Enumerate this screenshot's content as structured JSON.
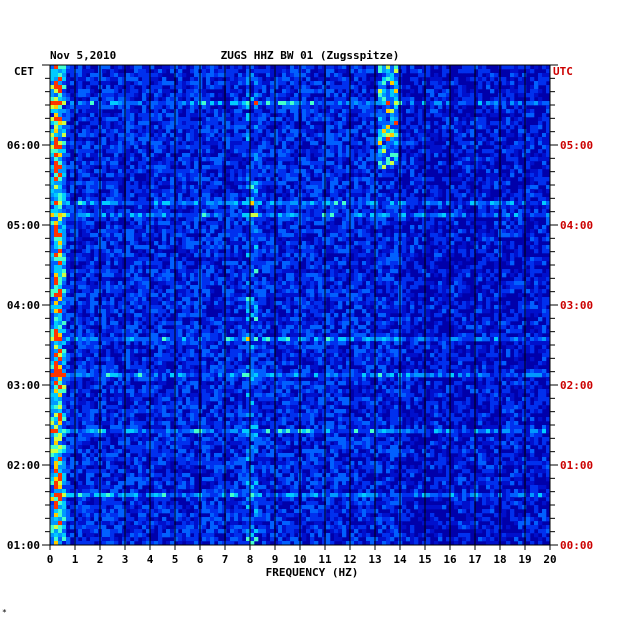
{
  "chart_data": {
    "type": "heatmap",
    "title_date": "Nov 5,2010",
    "title_station": "ZUGS HHZ BW 01 (Zugsspitze)",
    "xlabel": "FREQUENCY (HZ)",
    "xlim": [
      0,
      20
    ],
    "x_ticks": [
      "0",
      "1",
      "2",
      "3",
      "4",
      "5",
      "6",
      "7",
      "8",
      "9",
      "10",
      "11",
      "12",
      "13",
      "14",
      "15",
      "16",
      "17",
      "18",
      "19",
      "20"
    ],
    "left_axis_label": "CET",
    "right_axis_label": "UTC",
    "left_ticks": [
      "06:00",
      "05:00",
      "04:00",
      "03:00",
      "02:00",
      "01:00"
    ],
    "right_ticks": [
      "05:00",
      "04:00",
      "03:00",
      "02:00",
      "01:00",
      "00:00"
    ],
    "time_range_utc_hours": [
      0,
      6
    ],
    "colors": {
      "background": "#0000aa",
      "right_tick_labels": "#cc0000",
      "grid": "#000000"
    },
    "dominant_frequency_bands_hz": [
      0.2,
      0.4,
      8.1,
      13.3,
      13.6
    ],
    "grid": true
  },
  "footer_mark": "*"
}
